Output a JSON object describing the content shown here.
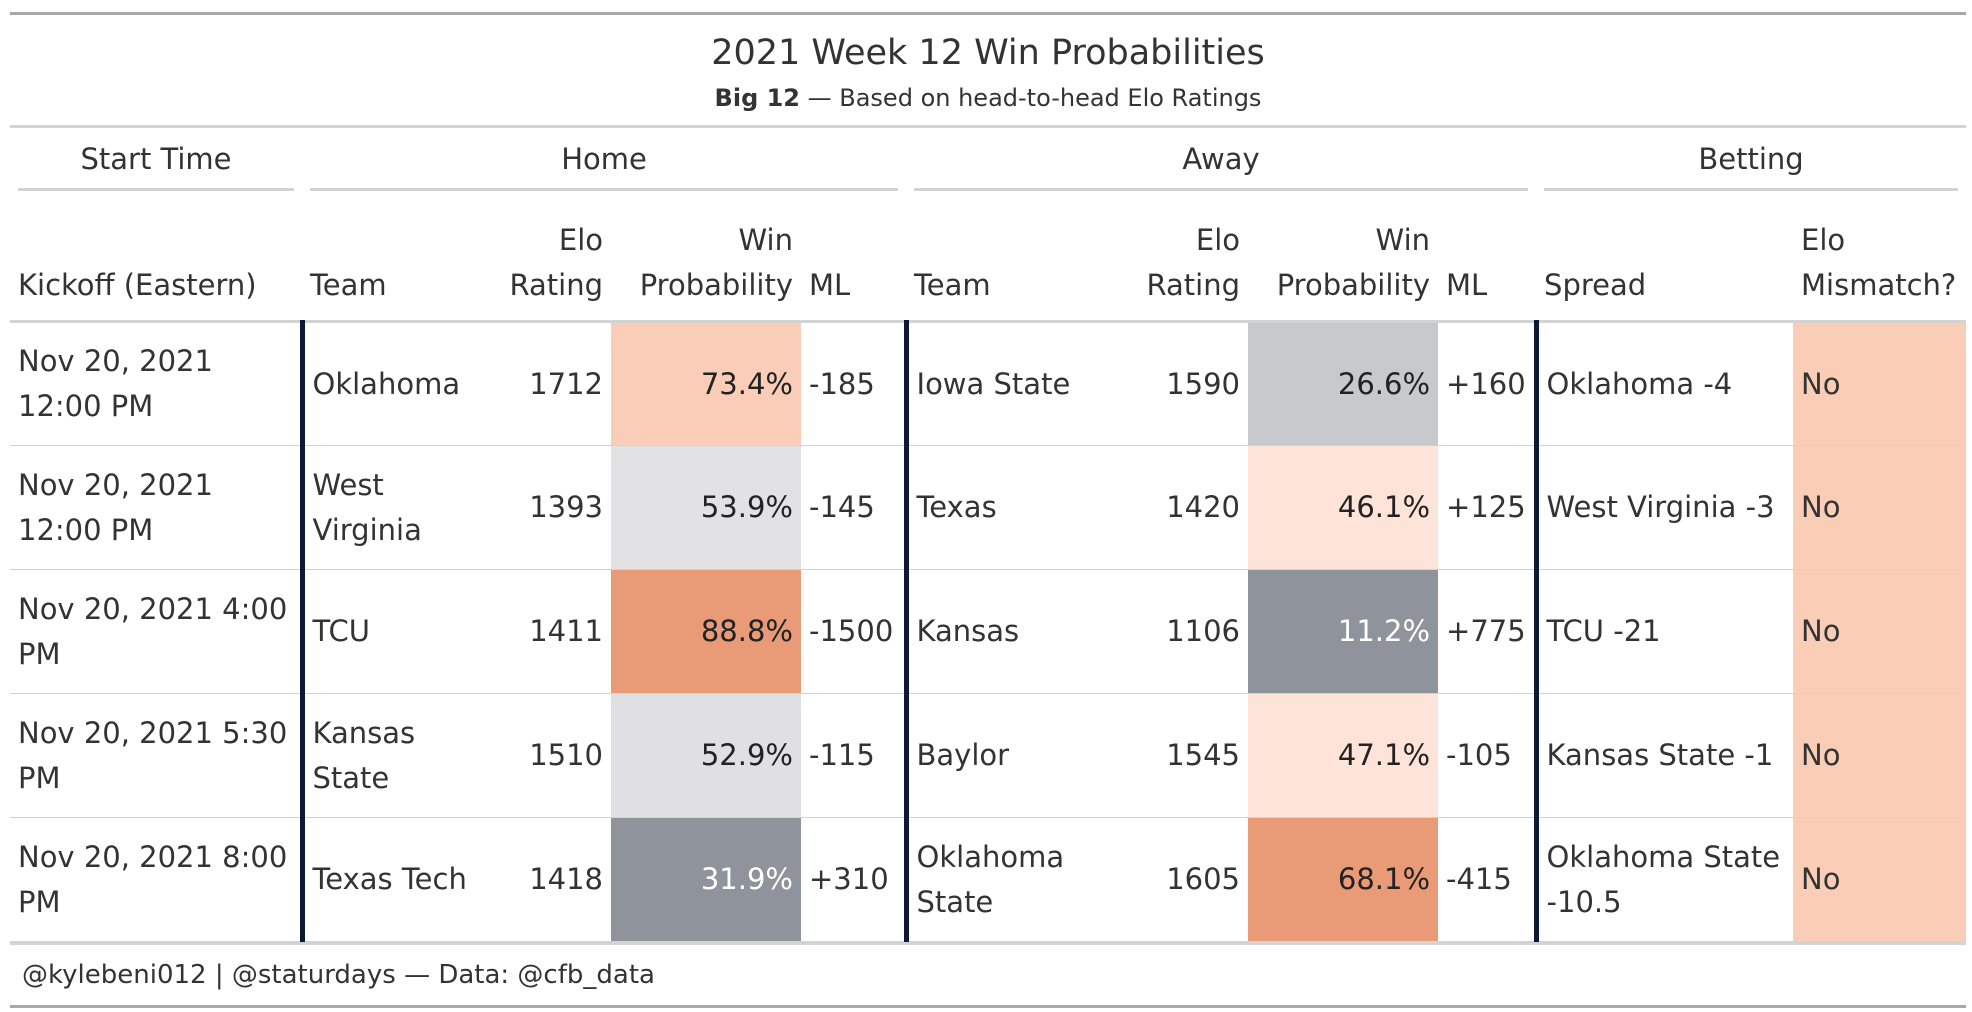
{
  "title": "2021 Week 12 Win Probabilities",
  "subtitle": {
    "bold": "Big 12",
    "rest": " — Based on head-to-head Elo Ratings"
  },
  "spanners": {
    "start": "Start Time",
    "home": "Home",
    "away": "Away",
    "betting": "Betting"
  },
  "columns": {
    "kickoff": "Kickoff (Eastern)",
    "home_team": "Team",
    "home_elo": [
      "Elo",
      "Rating"
    ],
    "home_wp": [
      "Win",
      "Probability"
    ],
    "home_ml": "ML",
    "away_team": "Team",
    "away_elo": [
      "Elo",
      "Rating"
    ],
    "away_wp": [
      "Win",
      "Probability"
    ],
    "away_ml": "ML",
    "spread": "Spread",
    "mismatch": [
      "Elo",
      "Mismatch?"
    ]
  },
  "colors": {
    "mismatch_no": "#f9cdb6",
    "divider": "#0e1a35"
  },
  "rows": [
    {
      "kickoff": "Nov 20, 2021 12:00 PM",
      "home_team": "Oklahoma",
      "home_elo": "1712",
      "home_wp": "73.4%",
      "home_wp_bg": "#f9cdb8",
      "home_wp_fg": "#222222",
      "home_ml": "-185",
      "away_team": "Iowa State",
      "away_elo": "1590",
      "away_wp": "26.6%",
      "away_wp_bg": "#c8c9cd",
      "away_wp_fg": "#222222",
      "away_ml": "+160",
      "spread": "Oklahoma -4",
      "mismatch": "No"
    },
    {
      "kickoff": "Nov 20, 2021 12:00 PM",
      "home_team": "West Virginia",
      "home_elo": "1393",
      "home_wp": "53.9%",
      "home_wp_bg": "#e2e2e4",
      "home_wp_fg": "#222222",
      "home_ml": "-145",
      "away_team": "Texas",
      "away_elo": "1420",
      "away_wp": "46.1%",
      "away_wp_bg": "#fde3d8",
      "away_wp_fg": "#222222",
      "away_ml": "+125",
      "spread": "West Virginia -3",
      "mismatch": "No"
    },
    {
      "kickoff": "Nov 20, 2021 4:00 PM",
      "home_team": "TCU",
      "home_elo": "1411",
      "home_wp": "88.8%",
      "home_wp_bg": "#e89b76",
      "home_wp_fg": "#222222",
      "home_ml": "-1500",
      "away_team": "Kansas",
      "away_elo": "1106",
      "away_wp": "11.2%",
      "away_wp_bg": "#8f939c",
      "away_wp_fg": "#ffffff",
      "away_ml": "+775",
      "spread": "TCU -21",
      "mismatch": "No"
    },
    {
      "kickoff": "Nov 20, 2021 5:30 PM",
      "home_team": "Kansas State",
      "home_elo": "1510",
      "home_wp": "52.9%",
      "home_wp_bg": "#e0e0e3",
      "home_wp_fg": "#222222",
      "home_ml": "-115",
      "away_team": "Baylor",
      "away_elo": "1545",
      "away_wp": "47.1%",
      "away_wp_bg": "#fde3d8",
      "away_wp_fg": "#222222",
      "away_ml": "-105",
      "spread": "Kansas State -1",
      "mismatch": "No"
    },
    {
      "kickoff": "Nov 20, 2021 8:00 PM",
      "home_team": "Texas Tech",
      "home_elo": "1418",
      "home_wp": "31.9%",
      "home_wp_bg": "#8f939c",
      "home_wp_fg": "#ffffff",
      "home_ml": "+310",
      "away_team": "Oklahoma State",
      "away_elo": "1605",
      "away_wp": "68.1%",
      "away_wp_bg": "#e89b76",
      "away_wp_fg": "#222222",
      "away_ml": "-415",
      "spread": "Oklahoma State -10.5",
      "mismatch": "No"
    }
  ],
  "footer": "@kylebeni012 | @staturdays — Data: @cfb_data"
}
